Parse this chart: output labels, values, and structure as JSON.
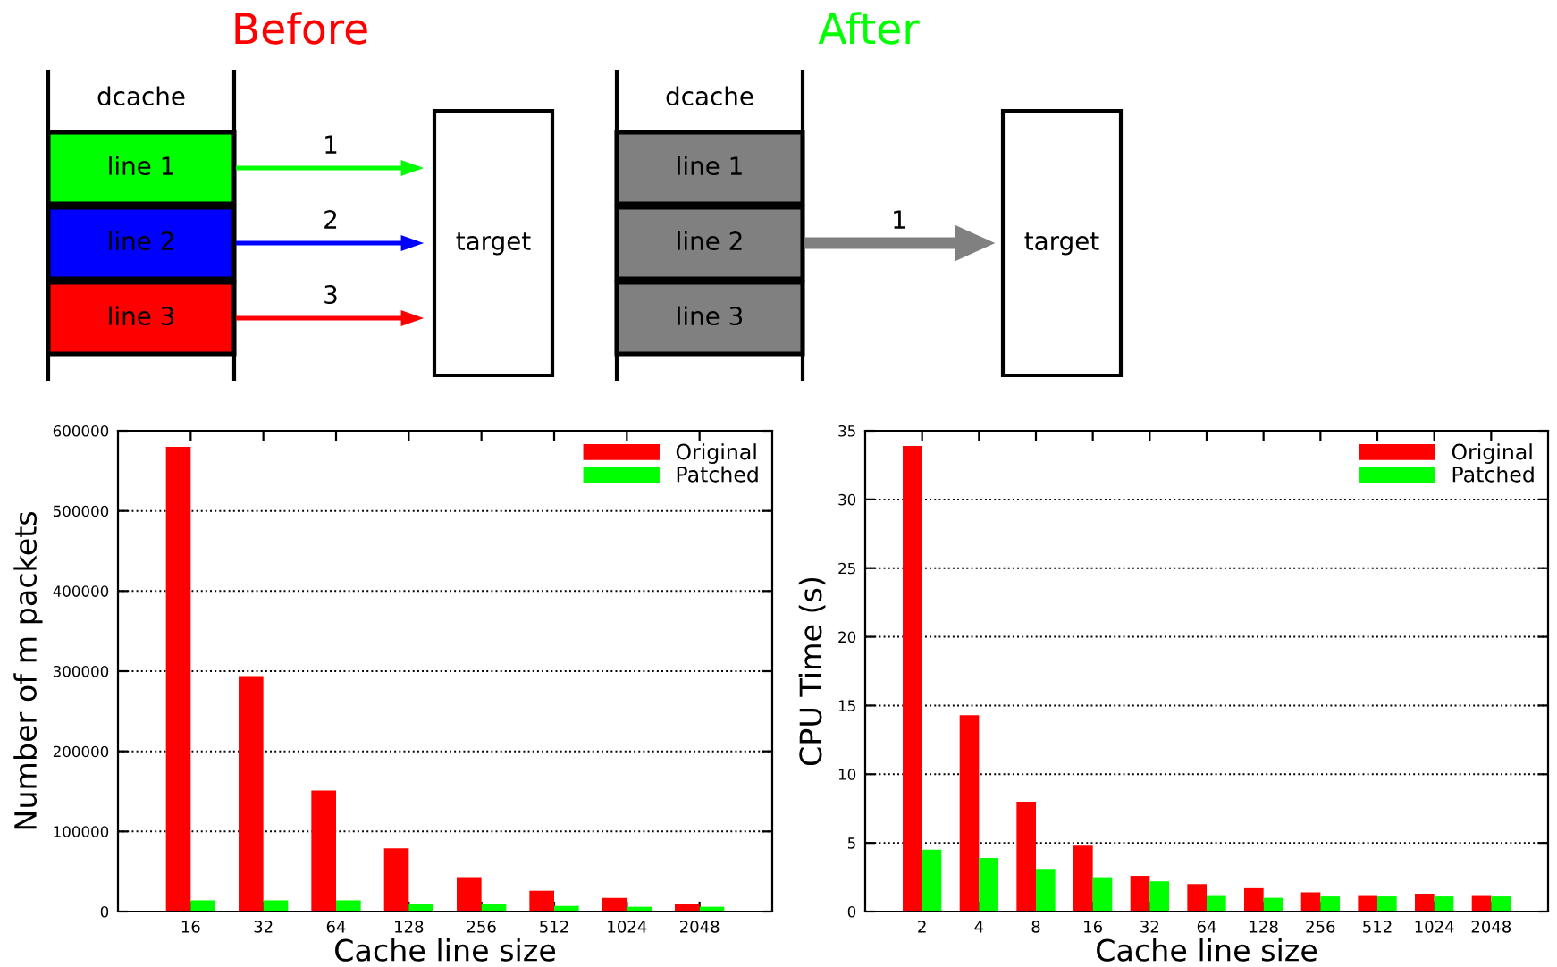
{
  "chart_data": [
    {
      "type": "other",
      "title": "Before",
      "color": "#ff0000",
      "colors": [
        "#00ff00",
        "#0000ff",
        "#ff0000"
      ],
      "annotations": [
        "dcache",
        "line 1",
        "line 2",
        "line 3",
        "1",
        "2",
        "3",
        "target"
      ]
    },
    {
      "type": "other",
      "title": "After",
      "color": "#00ff00",
      "colors": [
        "#808080",
        "#808080",
        "#808080"
      ],
      "annotations": [
        "dcache",
        "line 1",
        "line 2",
        "line 3",
        "1",
        "target"
      ]
    },
    {
      "type": "bar",
      "xlabel": "Cache line size",
      "ylabel": "Number of m packets",
      "categories": [
        "16",
        "32",
        "64",
        "128",
        "256",
        "512",
        "1024",
        "2048"
      ],
      "series": [
        {
          "name": "Original",
          "color": "#ff0000",
          "values": [
            580000,
            294000,
            151000,
            79000,
            43000,
            26000,
            17000,
            10000
          ]
        },
        {
          "name": "Patched",
          "color": "#00ff00",
          "values": [
            14000,
            14000,
            14000,
            10000,
            9000,
            7000,
            6000,
            6000
          ]
        }
      ],
      "ylim": [
        0,
        600000
      ],
      "yticks": [
        0,
        100000,
        200000,
        300000,
        400000,
        500000,
        600000
      ],
      "grid": "y",
      "legend": "top right"
    },
    {
      "type": "bar",
      "xlabel": "Cache line size",
      "ylabel": "CPU Time (s)",
      "categories": [
        "2",
        "4",
        "8",
        "16",
        "32",
        "64",
        "128",
        "256",
        "512",
        "1024",
        "2048"
      ],
      "series": [
        {
          "name": "Original",
          "color": "#ff0000",
          "values": [
            33.9,
            14.3,
            8.0,
            4.8,
            2.6,
            2.0,
            1.7,
            1.4,
            1.2,
            1.3,
            1.2
          ]
        },
        {
          "name": "Patched",
          "color": "#00ff00",
          "values": [
            4.5,
            3.9,
            3.1,
            2.5,
            2.2,
            1.2,
            1.0,
            1.1,
            1.1,
            1.1,
            1.1
          ]
        }
      ],
      "ylim": [
        0,
        35
      ],
      "yticks": [
        0,
        5,
        10,
        15,
        20,
        25,
        30,
        35
      ],
      "grid": "y",
      "legend": "top right"
    }
  ]
}
